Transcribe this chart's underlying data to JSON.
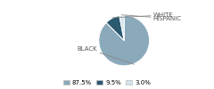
{
  "labels": [
    "BLACK",
    "WHITE",
    "HISPANIC"
  ],
  "values": [
    87.5,
    9.5,
    3.0
  ],
  "colors": [
    "#8aa9ba",
    "#2b5970",
    "#d4e4ed"
  ],
  "legend_labels": [
    "87.5%",
    "9.5%",
    "3.0%"
  ],
  "startangle": 90,
  "background_color": "#ffffff",
  "label_fontsize": 5.0,
  "legend_fontsize": 5.0
}
